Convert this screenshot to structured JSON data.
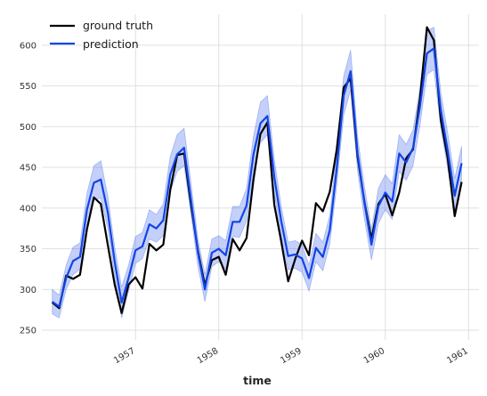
{
  "chart_data": {
    "type": "line",
    "xlabel": "time",
    "ylabel": "",
    "ylim": [
      238,
      638
    ],
    "y_ticks": [
      250,
      300,
      350,
      400,
      450,
      500,
      550,
      600
    ],
    "x_ticks": [
      {
        "label": "1957",
        "value": 1957.0
      },
      {
        "label": "1958",
        "value": 1958.0
      },
      {
        "label": "1959",
        "value": 1959.0
      },
      {
        "label": "1960",
        "value": 1960.0
      },
      {
        "label": "1961",
        "value": 1961.0
      }
    ],
    "xlim": [
      1955.875,
      1961.125
    ],
    "grid": true,
    "legend_position": "top-left",
    "x": [
      1956.0,
      1956.0833,
      1956.1667,
      1956.25,
      1956.3333,
      1956.4167,
      1956.5,
      1956.5833,
      1956.6667,
      1956.75,
      1956.8333,
      1956.9167,
      1957.0,
      1957.0833,
      1957.1667,
      1957.25,
      1957.3333,
      1957.4167,
      1957.5,
      1957.5833,
      1957.6667,
      1957.75,
      1957.8333,
      1957.9167,
      1958.0,
      1958.0833,
      1958.1667,
      1958.25,
      1958.3333,
      1958.4167,
      1958.5,
      1958.5833,
      1958.6667,
      1958.75,
      1958.8333,
      1958.9167,
      1959.0,
      1959.0833,
      1959.1667,
      1959.25,
      1959.3333,
      1959.4167,
      1959.5,
      1959.5833,
      1959.6667,
      1959.75,
      1959.8333,
      1959.9167,
      1960.0,
      1960.0833,
      1960.1667,
      1960.25,
      1960.3333,
      1960.4167,
      1960.5,
      1960.5833,
      1960.6667,
      1960.75,
      1960.8333,
      1960.9167
    ],
    "series": [
      {
        "name": "ground truth",
        "color": "#000000",
        "values": [
          284,
          277,
          317,
          313,
          318,
          374,
          413,
          405,
          355,
          306,
          271,
          306,
          315,
          301,
          356,
          348,
          355,
          422,
          465,
          467,
          404,
          347,
          305,
          336,
          340,
          318,
          362,
          348,
          363,
          435,
          491,
          505,
          404,
          359,
          310,
          337,
          360,
          342,
          406,
          396,
          420,
          472,
          548,
          559,
          463,
          407,
          362,
          405,
          417,
          391,
          419,
          461,
          472,
          535,
          622,
          606,
          508,
          461,
          390,
          432
        ]
      },
      {
        "name": "prediction",
        "color": "#1244e6",
        "band_color": "#1244e6",
        "values": [
          285,
          279,
          314,
          335,
          340,
          398,
          431,
          435,
          395,
          334,
          284,
          314,
          348,
          353,
          380,
          375,
          385,
          441,
          466,
          474,
          410,
          345,
          300,
          345,
          350,
          342,
          383,
          383,
          403,
          466,
          504,
          513,
          438,
          384,
          341,
          343,
          338,
          314,
          351,
          340,
          373,
          449,
          538,
          568,
          467,
          406,
          355,
          402,
          419,
          408,
          467,
          456,
          474,
          525,
          590,
          596,
          520,
          470,
          415,
          455
        ],
        "lower": [
          270,
          265,
          300,
          318,
          325,
          378,
          410,
          412,
          375,
          315,
          265,
          298,
          332,
          338,
          362,
          358,
          366,
          420,
          445,
          452,
          392,
          328,
          285,
          328,
          334,
          325,
          365,
          364,
          384,
          445,
          480,
          490,
          418,
          366,
          324,
          326,
          321,
          298,
          334,
          323,
          356,
          428,
          514,
          545,
          446,
          386,
          336,
          381,
          398,
          386,
          445,
          434,
          452,
          502,
          564,
          570,
          498,
          448,
          394,
          434
        ],
        "upper": [
          300,
          293,
          330,
          352,
          357,
          418,
          452,
          458,
          415,
          352,
          303,
          330,
          365,
          370,
          398,
          392,
          405,
          463,
          490,
          498,
          430,
          362,
          318,
          362,
          366,
          360,
          402,
          402,
          424,
          488,
          530,
          538,
          460,
          402,
          358,
          360,
          355,
          330,
          369,
          358,
          391,
          470,
          562,
          594,
          488,
          426,
          374,
          424,
          441,
          430,
          490,
          478,
          496,
          548,
          618,
          622,
          542,
          492,
          436,
          476
        ]
      }
    ]
  }
}
